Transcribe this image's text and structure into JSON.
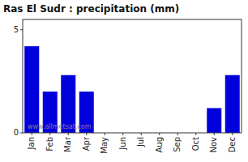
{
  "chart_data": {
    "type": "bar",
    "title": "Ras El Sudr : precipitation (mm)",
    "categories": [
      "Jan",
      "Feb",
      "Mar",
      "Apr",
      "May",
      "Jun",
      "Jul",
      "Aug",
      "Sep",
      "Oct",
      "Nov",
      "Dec"
    ],
    "values": [
      4.2,
      2.0,
      2.8,
      2.0,
      0.0,
      0.0,
      0.0,
      0.0,
      0.0,
      0.0,
      1.2,
      2.8
    ],
    "color": "#0000dd",
    "ylim": [
      0,
      5.5
    ],
    "yticks": [
      0,
      5
    ],
    "grid": false,
    "annotations": [
      "www.allmetsat.com"
    ]
  }
}
